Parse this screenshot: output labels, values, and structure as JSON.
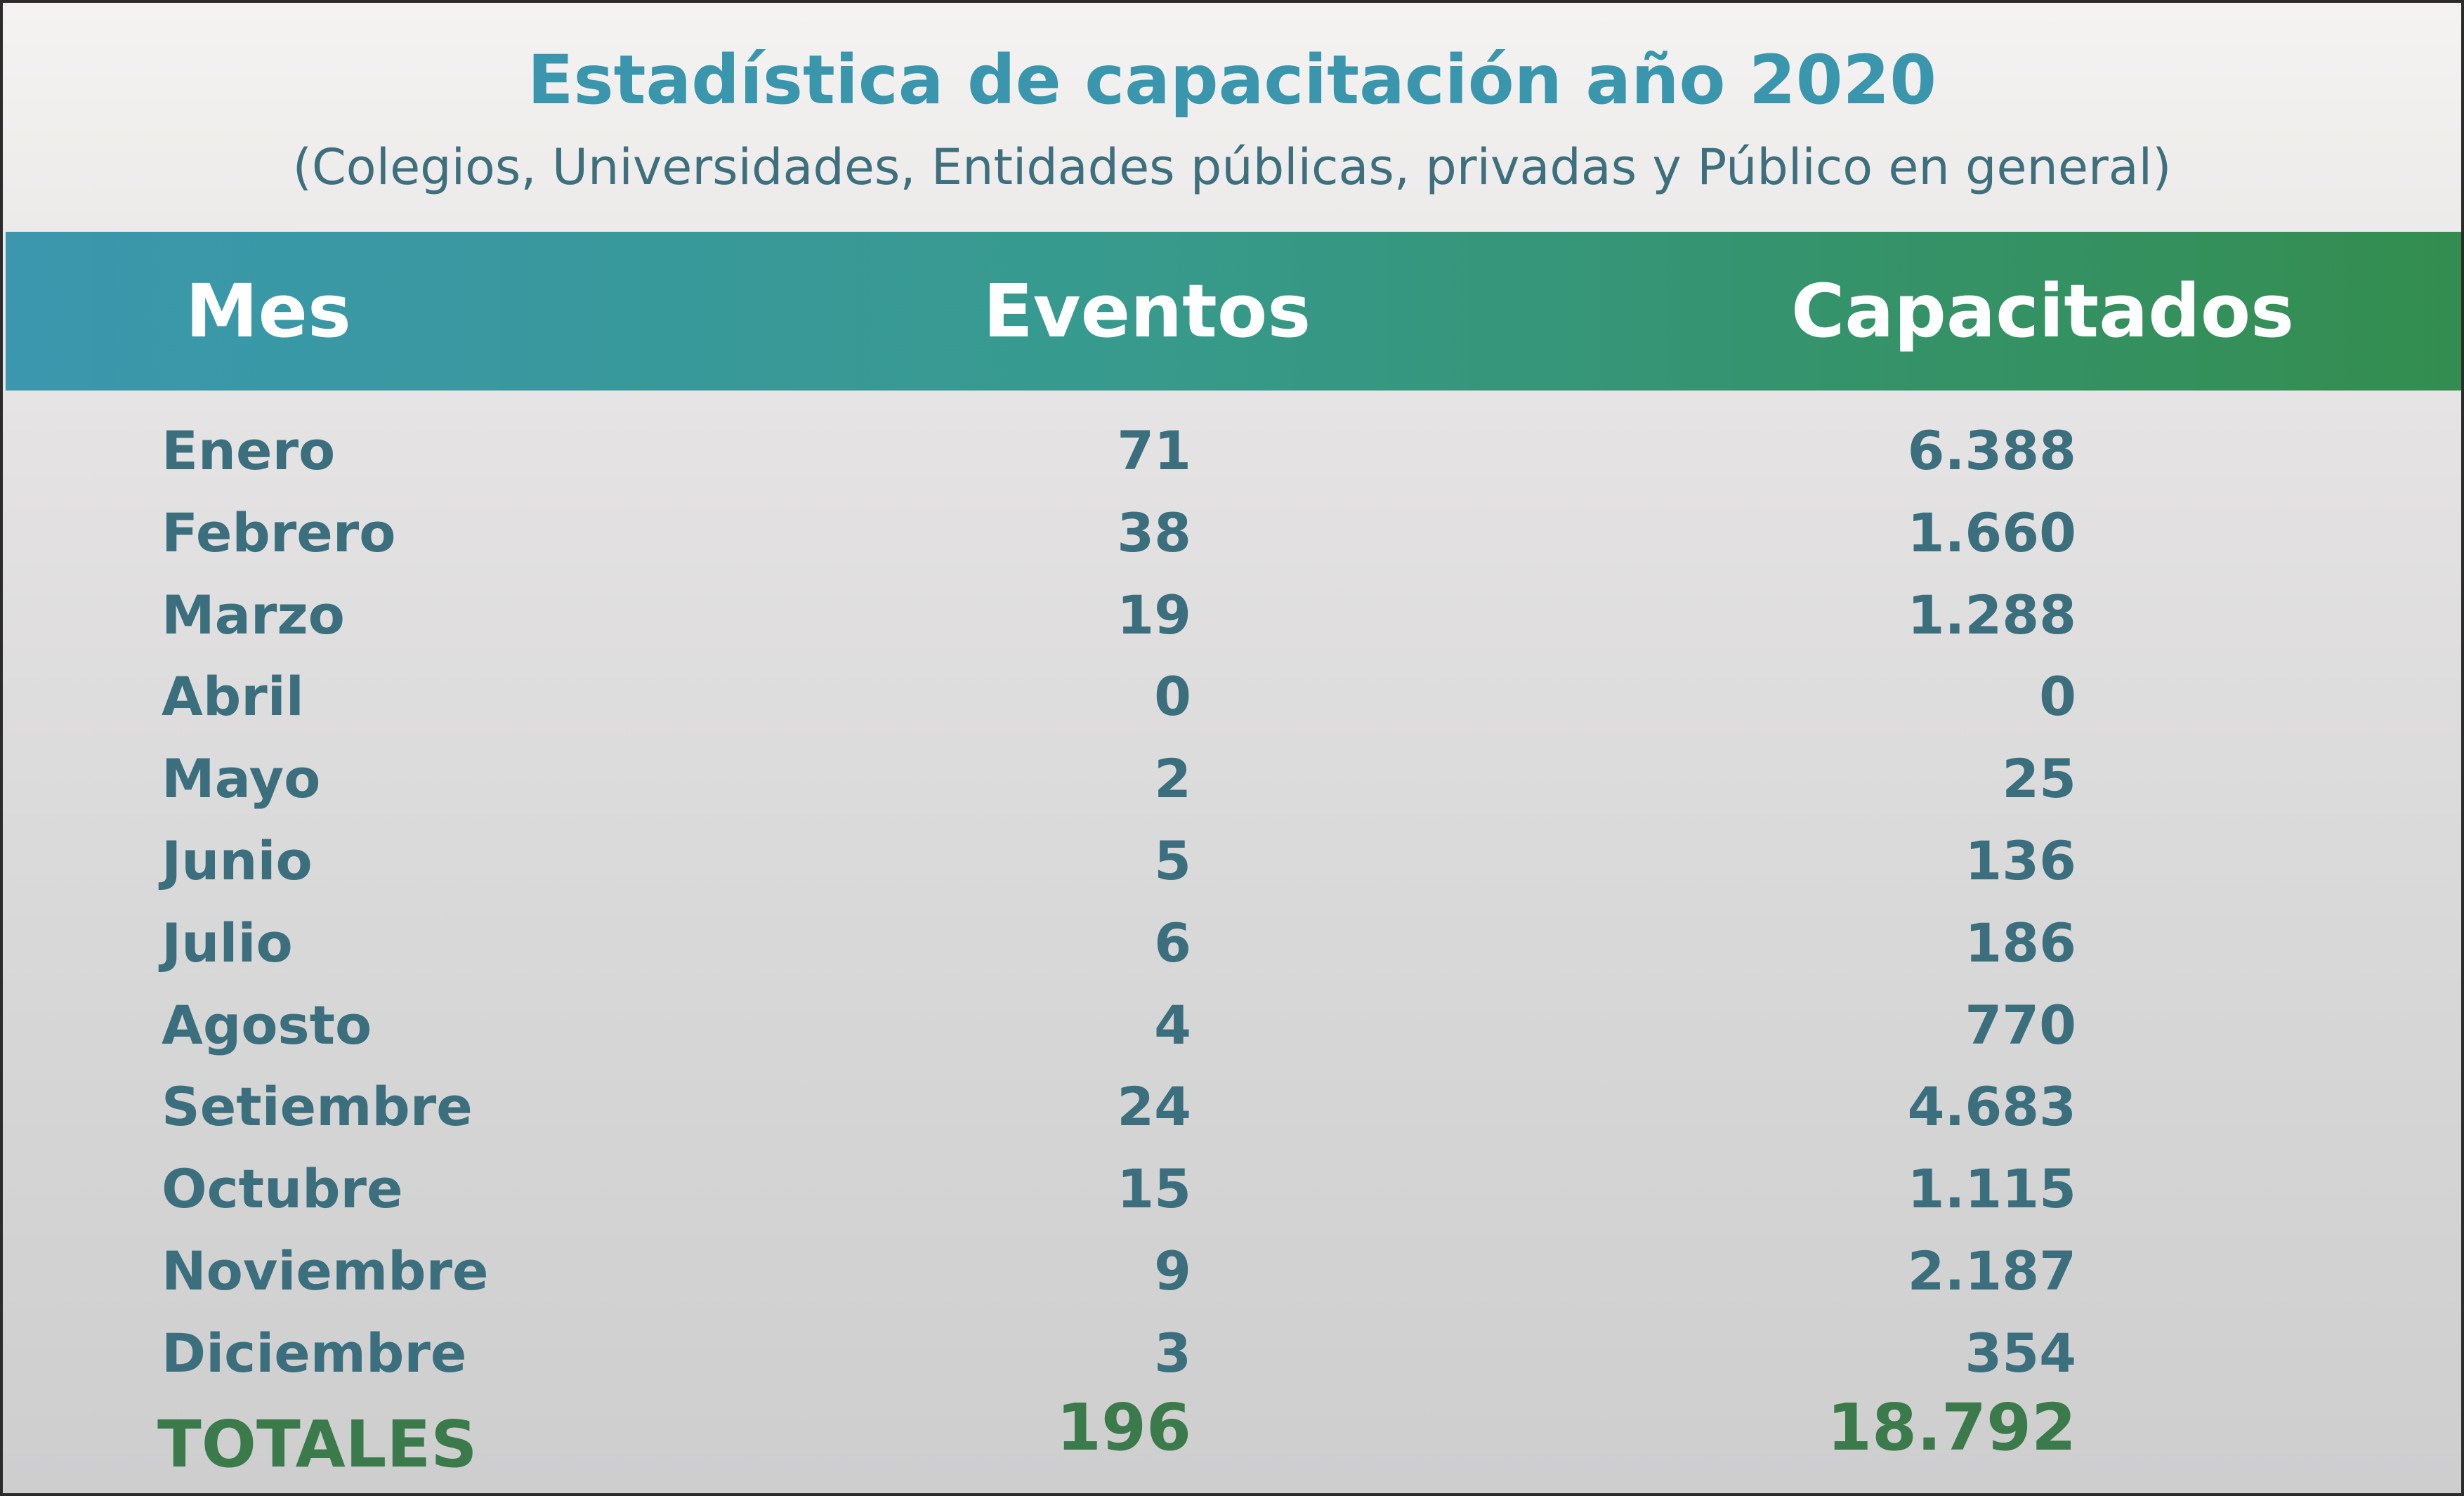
{
  "title": "Estadística de capacitación año 2020",
  "subtitle": "(Colegios, Universidades, Entidades públicas, privadas y Público en general)",
  "colors": {
    "title": "#3a96ad",
    "text": "#3b6f7e",
    "totals": "#3b7a4b",
    "header_gradient_start": "#3a97ae",
    "header_gradient_end": "#338d4f"
  },
  "table": {
    "headers": [
      "Mes",
      "Eventos",
      "Capacitados"
    ],
    "rows": [
      [
        "Enero",
        "71",
        "6.388"
      ],
      [
        "Febrero",
        "38",
        "1.660"
      ],
      [
        "Marzo",
        "19",
        "1.288"
      ],
      [
        "Abril",
        "0",
        "0"
      ],
      [
        "Mayo",
        "2",
        "25"
      ],
      [
        "Junio",
        "5",
        "136"
      ],
      [
        "Julio",
        "6",
        "186"
      ],
      [
        "Agosto",
        "4",
        "770"
      ],
      [
        "Setiembre",
        "24",
        "4.683"
      ],
      [
        "Octubre",
        "15",
        "1.115"
      ],
      [
        "Noviembre",
        "9",
        "2.187"
      ],
      [
        "Diciembre",
        "3",
        "354"
      ]
    ],
    "totals": {
      "label": "TOTALES",
      "eventos": "196",
      "capacitados": "18.792"
    }
  }
}
